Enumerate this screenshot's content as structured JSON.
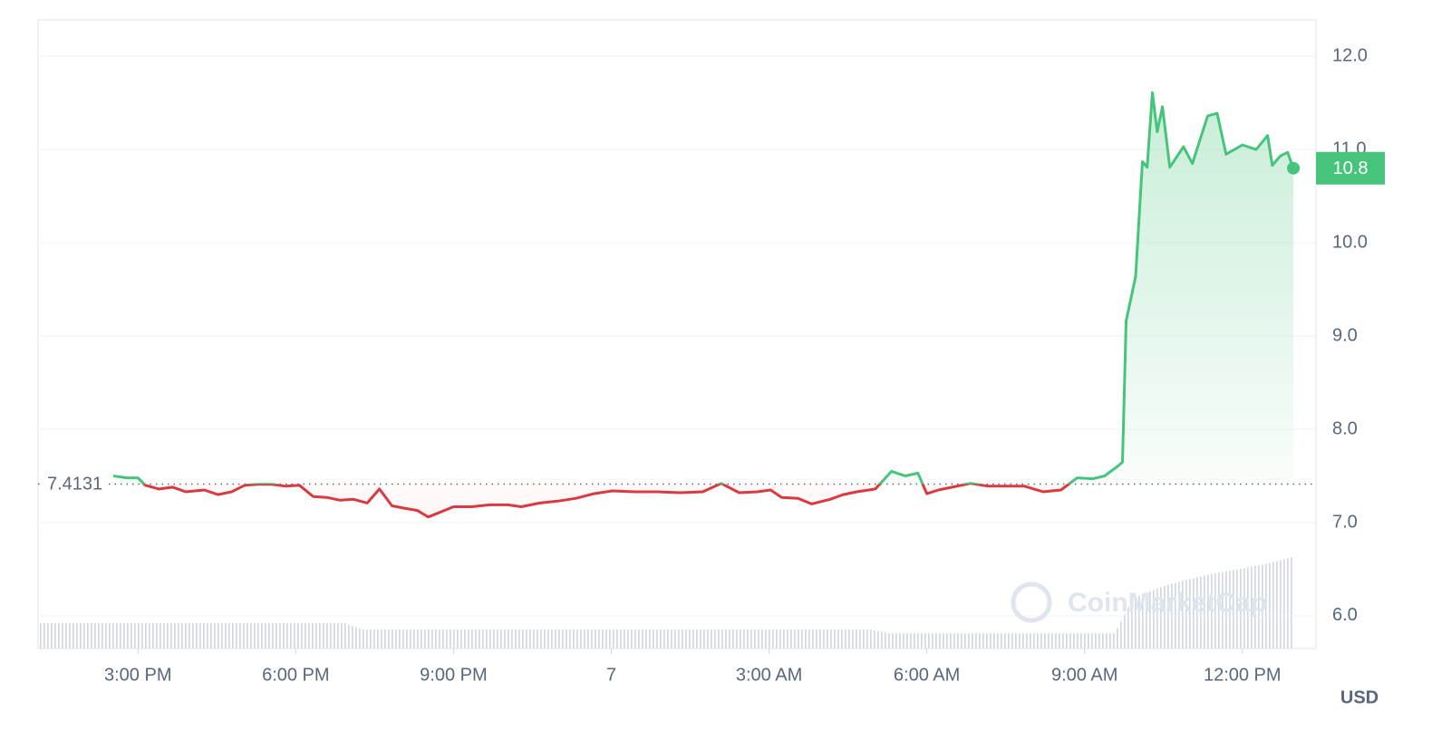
{
  "chart_data": {
    "type": "line",
    "x": [
      14.53,
      14.79,
      15.0,
      15.14,
      15.4,
      15.66,
      15.91,
      16.26,
      16.52,
      16.78,
      17.03,
      17.29,
      17.55,
      17.81,
      18.07,
      18.33,
      18.59,
      18.84,
      19.1,
      19.36,
      19.59,
      19.83,
      20.1,
      20.31,
      20.52,
      20.74,
      21.0,
      21.34,
      21.69,
      22.03,
      22.29,
      22.64,
      22.98,
      23.33,
      23.67,
      24.02,
      24.45,
      24.88,
      25.31,
      25.74,
      26.09,
      26.43,
      26.78,
      27.03,
      27.24,
      27.55,
      27.81,
      28.16,
      28.41,
      28.67,
      29.02,
      29.33,
      29.59,
      29.83,
      30.0,
      30.22,
      30.48,
      30.83,
      31.17,
      31.52,
      31.86,
      32.21,
      32.55,
      32.86,
      33.16,
      33.38,
      33.62,
      33.72,
      33.79,
      33.97,
      34.1,
      34.19,
      34.29,
      34.38,
      34.48,
      34.62,
      34.88,
      35.05,
      35.34,
      35.52,
      35.69,
      36.0,
      36.26,
      36.48,
      36.57,
      36.72,
      36.86,
      36.97
    ],
    "values": [
      7.5,
      7.48,
      7.48,
      7.4,
      7.36,
      7.38,
      7.33,
      7.35,
      7.3,
      7.33,
      7.4,
      7.41,
      7.41,
      7.39,
      7.4,
      7.28,
      7.27,
      7.24,
      7.25,
      7.21,
      7.36,
      7.18,
      7.15,
      7.13,
      7.06,
      7.11,
      7.17,
      7.17,
      7.19,
      7.19,
      7.17,
      7.21,
      7.23,
      7.26,
      7.31,
      7.34,
      7.33,
      7.33,
      7.32,
      7.33,
      7.42,
      7.32,
      7.33,
      7.35,
      7.27,
      7.26,
      7.2,
      7.25,
      7.3,
      7.33,
      7.36,
      7.55,
      7.5,
      7.53,
      7.31,
      7.35,
      7.38,
      7.42,
      7.39,
      7.39,
      7.39,
      7.33,
      7.35,
      7.48,
      7.47,
      7.5,
      7.6,
      7.65,
      9.16,
      9.64,
      10.87,
      10.81,
      11.61,
      11.19,
      11.46,
      10.81,
      11.03,
      10.85,
      11.36,
      11.39,
      10.95,
      11.05,
      11.0,
      11.15,
      10.83,
      10.93,
      10.97,
      10.8
    ],
    "baseline": 7.4131,
    "current_price": 10.8,
    "color_up": "#47c47b",
    "color_down": "#d9393f",
    "xlim": [
      13.1,
      37.4
    ],
    "ylim": [
      5.65,
      12.39
    ],
    "xticks": [
      {
        "value": 15,
        "label": "3:00 PM"
      },
      {
        "value": 18,
        "label": "6:00 PM"
      },
      {
        "value": 21,
        "label": "9:00 PM"
      },
      {
        "value": 24,
        "label": "7"
      },
      {
        "value": 27,
        "label": "3:00 AM"
      },
      {
        "value": 30,
        "label": "6:00 AM"
      },
      {
        "value": 33,
        "label": "9:00 AM"
      },
      {
        "value": 36,
        "label": "12:00 PM"
      }
    ],
    "yticks": [
      {
        "value": 6,
        "label": "6.0"
      },
      {
        "value": 7,
        "label": "7.0"
      },
      {
        "value": 8,
        "label": "8.0"
      },
      {
        "value": 9,
        "label": "9.0"
      },
      {
        "value": 10,
        "label": "10.0"
      },
      {
        "value": 11,
        "label": "11.0"
      },
      {
        "value": 12,
        "label": "12.0"
      }
    ],
    "grid": true,
    "currency": "USD",
    "watermark": "CoinMarketCap"
  }
}
